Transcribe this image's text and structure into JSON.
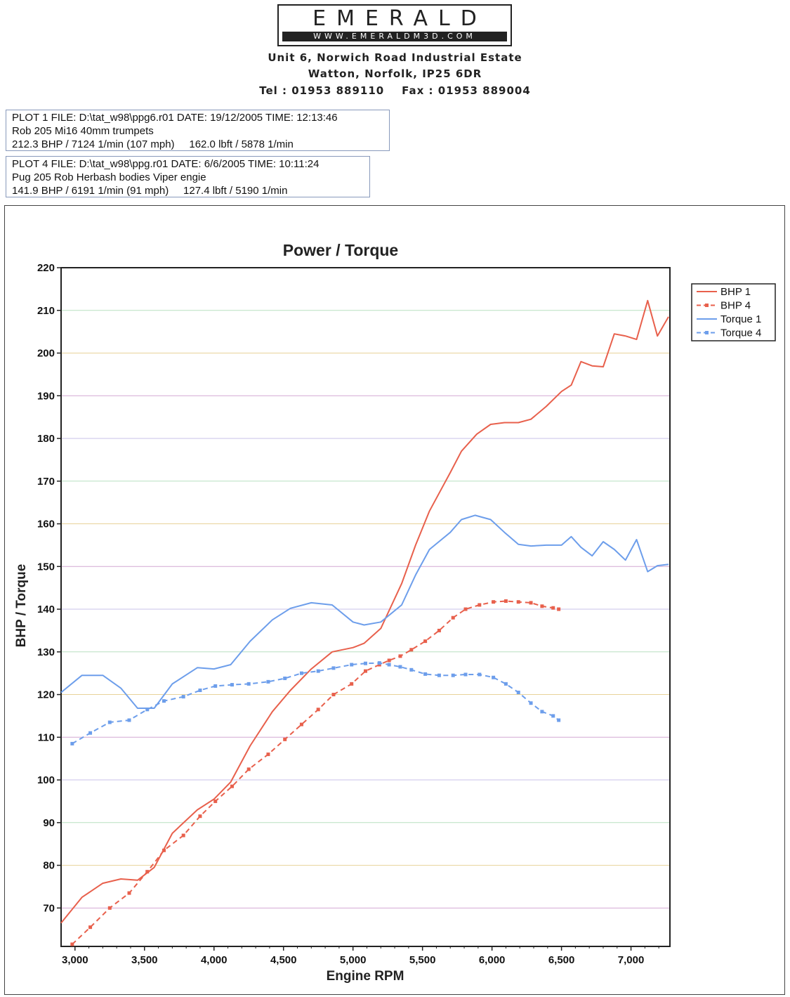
{
  "header": {
    "logo_word": "EMERALD",
    "logo_url": "WWW.EMERALDM3D.COM",
    "address_line1": "Unit 6, Norwich Road Industrial Estate",
    "address_line2": "Watton, Norfolk, IP25 6DR",
    "contact_line": "Tel : 01953 889110    Fax : 01953 889004"
  },
  "plots": [
    {
      "line1": "PLOT 1 FILE: D:\\tat_w98\\ppg6.r01  DATE: 19/12/2005  TIME: 12:13:46",
      "line2": "Rob 205 Mi16  40mm trumpets",
      "line3": "212.3 BHP / 7124 1/min (107 mph)     162.0 lbft / 5878 1/min"
    },
    {
      "line1": "PLOT 4 FILE: D:\\tat_w98\\ppg.r01  DATE: 6/6/2005  TIME: 10:11:24",
      "line2": "Pug 205 Rob Herbash bodies Viper engie",
      "line3": "141.9 BHP / 6191 1/min (91 mph)     127.4 lbft / 5190 1/min"
    }
  ],
  "chart_data": {
    "type": "line",
    "title": "Power / Torque",
    "xlabel": "Engine RPM",
    "ylabel": "BHP / Torque",
    "xlim": [
      2900,
      7280
    ],
    "ylim": [
      61,
      220
    ],
    "xticks": [
      3000,
      3500,
      4000,
      4500,
      5000,
      5500,
      6000,
      6500,
      7000
    ],
    "xtick_labels": [
      "3,000",
      "3,500",
      "4,000",
      "4,500",
      "5,000",
      "5,500",
      "6,000",
      "6,500",
      "7,000"
    ],
    "yticks": [
      70,
      80,
      90,
      100,
      110,
      120,
      130,
      140,
      150,
      160,
      170,
      180,
      190,
      200,
      210,
      220
    ],
    "legend_position": "right",
    "series": [
      {
        "name": "BHP 1",
        "color": "#e8604c",
        "dashed": false,
        "markers": false,
        "x": [
          2900,
          3050,
          3200,
          3330,
          3450,
          3570,
          3700,
          3880,
          4000,
          4120,
          4260,
          4420,
          4550,
          4700,
          4850,
          5000,
          5080,
          5200,
          5350,
          5450,
          5550,
          5700,
          5780,
          5890,
          5990,
          6090,
          6190,
          6280,
          6390,
          6500,
          6570,
          6640,
          6720,
          6800,
          6880,
          6960,
          7040,
          7120,
          7190,
          7270
        ],
        "y": [
          66.5,
          72.5,
          75.8,
          76.8,
          76.5,
          79.5,
          87.5,
          93,
          95.5,
          99.5,
          108,
          116,
          121,
          126,
          130,
          131,
          132,
          135.5,
          146,
          155,
          163,
          172,
          177,
          181,
          183.3,
          183.7,
          183.7,
          184.5,
          187.5,
          191,
          192.5,
          198,
          197,
          196.8,
          204.5,
          204,
          203.2,
          212.3,
          204,
          208.5
        ]
      },
      {
        "name": "BHP 4",
        "color": "#e8604c",
        "dashed": true,
        "markers": true,
        "x": [
          2980,
          3110,
          3250,
          3390,
          3520,
          3640,
          3780,
          3900,
          4010,
          4130,
          4250,
          4390,
          4510,
          4630,
          4750,
          4860,
          4990,
          5090,
          5190,
          5260,
          5340,
          5420,
          5520,
          5620,
          5720,
          5810,
          5910,
          6010,
          6100,
          6190,
          6280,
          6360,
          6440,
          6480
        ],
        "y": [
          61.5,
          65.5,
          70,
          73.5,
          78.5,
          83.5,
          87,
          91.5,
          95,
          98.5,
          102.5,
          106,
          109.5,
          113,
          116.5,
          120,
          122.5,
          125.5,
          127,
          128,
          129,
          130.5,
          132.5,
          135,
          138,
          140,
          141,
          141.7,
          141.9,
          141.7,
          141.5,
          140.7,
          140.3,
          140
        ]
      },
      {
        "name": "Torque 1",
        "color": "#6d9eeb",
        "dashed": false,
        "markers": false,
        "x": [
          2900,
          3050,
          3200,
          3330,
          3450,
          3570,
          3700,
          3880,
          4000,
          4120,
          4260,
          4420,
          4550,
          4700,
          4850,
          5000,
          5080,
          5200,
          5350,
          5450,
          5550,
          5700,
          5780,
          5878,
          5990,
          6090,
          6190,
          6280,
          6390,
          6500,
          6570,
          6640,
          6720,
          6800,
          6880,
          6960,
          7040,
          7120,
          7190,
          7270
        ],
        "y": [
          120.5,
          124.5,
          124.5,
          121.5,
          116.8,
          116.8,
          122.5,
          126.3,
          126,
          127,
          132.5,
          137.5,
          140.2,
          141.5,
          141,
          137,
          136.3,
          137,
          141,
          148,
          154,
          158,
          161,
          162,
          161,
          158,
          155.2,
          154.8,
          155,
          155,
          157,
          154.5,
          152.5,
          155.8,
          154,
          151.5,
          156.3,
          148.8,
          150.2,
          150.5
        ]
      },
      {
        "name": "Torque 4",
        "color": "#6d9eeb",
        "dashed": true,
        "markers": true,
        "x": [
          2980,
          3110,
          3250,
          3390,
          3520,
          3640,
          3780,
          3900,
          4010,
          4130,
          4250,
          4390,
          4510,
          4630,
          4750,
          4860,
          4990,
          5090,
          5190,
          5260,
          5340,
          5420,
          5520,
          5620,
          5720,
          5810,
          5910,
          6010,
          6100,
          6190,
          6280,
          6360,
          6440,
          6480
        ],
        "y": [
          108.5,
          111,
          113.5,
          114,
          116.5,
          118.5,
          119.5,
          121,
          122,
          122.3,
          122.5,
          123,
          123.8,
          125,
          125.5,
          126.2,
          127,
          127.3,
          127.4,
          127,
          126.5,
          125.8,
          124.8,
          124.5,
          124.5,
          124.7,
          124.7,
          124,
          122.5,
          120.5,
          118,
          116,
          115,
          114
        ]
      }
    ]
  }
}
